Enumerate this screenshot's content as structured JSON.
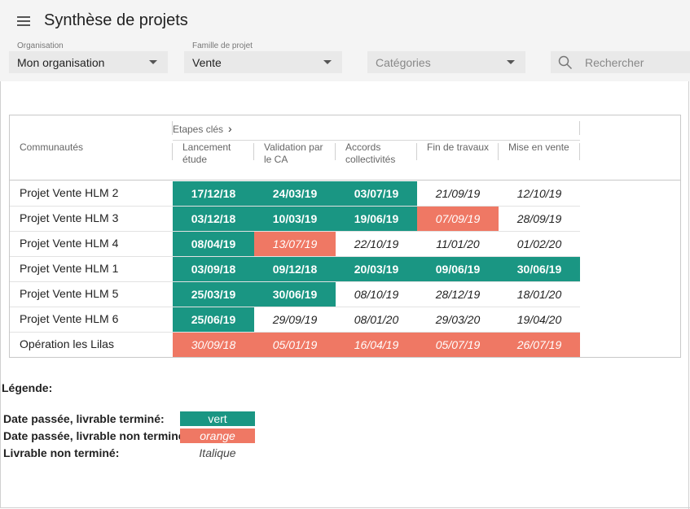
{
  "header": {
    "title": "Synthèse de projets"
  },
  "filters": [
    {
      "label": "Organisation",
      "value": "Mon organisation",
      "placeholder": false
    },
    {
      "label": "Famille de projet",
      "value": "Vente",
      "placeholder": false
    },
    {
      "label": "",
      "value": "Catégories",
      "placeholder": true
    }
  ],
  "search": {
    "placeholder": "Rechercher",
    "value": ""
  },
  "table": {
    "group_label": "Etapes clés",
    "first_col_header": "Communautés",
    "columns": [
      "Lancement\nétude",
      "Validation par\nle CA",
      "Accords\ncollectivités",
      "Fin de travaux",
      "Mise en vente"
    ],
    "rows": [
      {
        "name": "Projet Vente HLM 2",
        "cells": [
          {
            "date": "17/12/18",
            "status": "green"
          },
          {
            "date": "24/03/19",
            "status": "green"
          },
          {
            "date": "03/07/19",
            "status": "green"
          },
          {
            "date": "21/09/19",
            "status": "italic"
          },
          {
            "date": "12/10/19",
            "status": "italic"
          }
        ]
      },
      {
        "name": "Projet Vente HLM 3",
        "cells": [
          {
            "date": "03/12/18",
            "status": "green"
          },
          {
            "date": "10/03/19",
            "status": "green"
          },
          {
            "date": "19/06/19",
            "status": "green"
          },
          {
            "date": "07/09/19",
            "status": "orange"
          },
          {
            "date": "28/09/19",
            "status": "italic"
          }
        ]
      },
      {
        "name": "Projet Vente HLM 4",
        "cells": [
          {
            "date": "08/04/19",
            "status": "green"
          },
          {
            "date": "13/07/19",
            "status": "orange"
          },
          {
            "date": "22/10/19",
            "status": "italic"
          },
          {
            "date": "11/01/20",
            "status": "italic"
          },
          {
            "date": "01/02/20",
            "status": "italic"
          }
        ]
      },
      {
        "name": "Projet Vente HLM 1",
        "cells": [
          {
            "date": "03/09/18",
            "status": "green"
          },
          {
            "date": "09/12/18",
            "status": "green"
          },
          {
            "date": "20/03/19",
            "status": "green"
          },
          {
            "date": "09/06/19",
            "status": "green"
          },
          {
            "date": "30/06/19",
            "status": "green"
          }
        ]
      },
      {
        "name": "Projet Vente HLM 5",
        "cells": [
          {
            "date": "25/03/19",
            "status": "green"
          },
          {
            "date": "30/06/19",
            "status": "green"
          },
          {
            "date": "08/10/19",
            "status": "italic"
          },
          {
            "date": "28/12/19",
            "status": "italic"
          },
          {
            "date": "18/01/20",
            "status": "italic"
          }
        ]
      },
      {
        "name": "Projet Vente HLM 6",
        "cells": [
          {
            "date": "25/06/19",
            "status": "green"
          },
          {
            "date": "29/09/19",
            "status": "italic"
          },
          {
            "date": "08/01/20",
            "status": "italic"
          },
          {
            "date": "29/03/20",
            "status": "italic"
          },
          {
            "date": "19/04/20",
            "status": "italic"
          }
        ]
      },
      {
        "name": "Opération les Lilas",
        "cells": [
          {
            "date": "30/09/18",
            "status": "orange"
          },
          {
            "date": "05/01/19",
            "status": "orange"
          },
          {
            "date": "16/04/19",
            "status": "orange"
          },
          {
            "date": "05/07/19",
            "status": "orange"
          },
          {
            "date": "26/07/19",
            "status": "orange"
          }
        ]
      }
    ]
  },
  "legend": {
    "title": "Légende:",
    "items": [
      {
        "label": "Date passée, livrable terminé:",
        "swatch": "vert",
        "status": "green"
      },
      {
        "label": "Date passée, livrable non terminé:",
        "swatch": "orange",
        "status": "orange"
      },
      {
        "label": "Livrable non terminé:",
        "swatch": "Italique",
        "status": "italic"
      }
    ]
  },
  "colors": {
    "green": "#1a9683",
    "orange": "#ef7864"
  }
}
